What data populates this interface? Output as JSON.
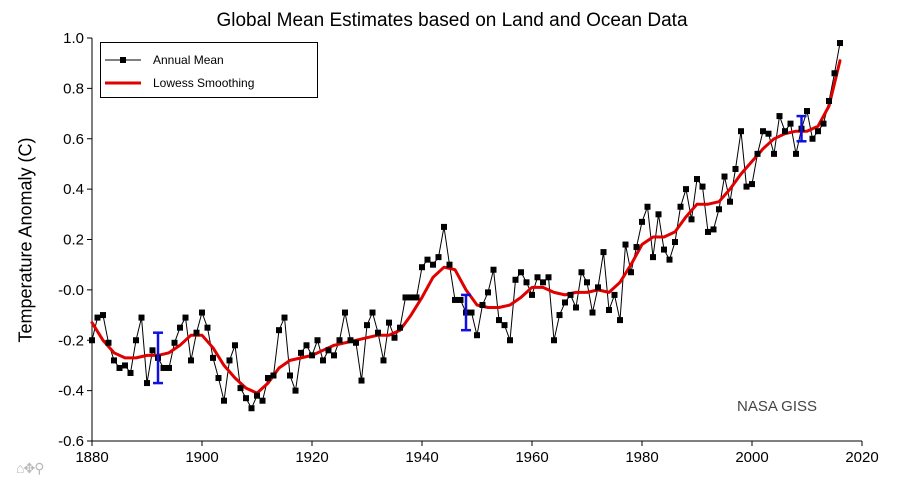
{
  "chart_data": {
    "type": "line",
    "title": "Global Mean Estimates based on Land and Ocean Data",
    "xlabel": "",
    "ylabel": "Temperature Anomaly (C)",
    "xlim": [
      1880,
      2020
    ],
    "ylim": [
      -0.6,
      1.0
    ],
    "x_ticks": [
      "1880",
      "1900",
      "1920",
      "1940",
      "1960",
      "1980",
      "2000",
      "2020"
    ],
    "y_ticks": [
      "1.0",
      "0.8",
      "0.6",
      "0.4",
      "0.2",
      "-0.0",
      "-0.2",
      "-0.4",
      "-0.6"
    ],
    "legend_position": "top-left",
    "grid": false,
    "series": [
      {
        "name": "Annual Mean",
        "color": "#000000",
        "marker": "square",
        "x": [
          1880,
          1881,
          1882,
          1883,
          1884,
          1885,
          1886,
          1887,
          1888,
          1889,
          1890,
          1891,
          1892,
          1893,
          1894,
          1895,
          1896,
          1897,
          1898,
          1899,
          1900,
          1901,
          1902,
          1903,
          1904,
          1905,
          1906,
          1907,
          1908,
          1909,
          1910,
          1911,
          1912,
          1913,
          1914,
          1915,
          1916,
          1917,
          1918,
          1919,
          1920,
          1921,
          1922,
          1923,
          1924,
          1925,
          1926,
          1927,
          1928,
          1929,
          1930,
          1931,
          1932,
          1933,
          1934,
          1935,
          1936,
          1937,
          1938,
          1939,
          1940,
          1941,
          1942,
          1943,
          1944,
          1945,
          1946,
          1947,
          1948,
          1949,
          1950,
          1951,
          1952,
          1953,
          1954,
          1955,
          1956,
          1957,
          1958,
          1959,
          1960,
          1961,
          1962,
          1963,
          1964,
          1965,
          1966,
          1967,
          1968,
          1969,
          1970,
          1971,
          1972,
          1973,
          1974,
          1975,
          1976,
          1977,
          1978,
          1979,
          1980,
          1981,
          1982,
          1983,
          1984,
          1985,
          1986,
          1987,
          1988,
          1989,
          1990,
          1991,
          1992,
          1993,
          1994,
          1995,
          1996,
          1997,
          1998,
          1999,
          2000,
          2001,
          2002,
          2003,
          2004,
          2005,
          2006,
          2007,
          2008,
          2009,
          2010,
          2011,
          2012,
          2013,
          2014,
          2015,
          2016
        ],
        "y": [
          -0.2,
          -0.11,
          -0.1,
          -0.21,
          -0.28,
          -0.31,
          -0.3,
          -0.33,
          -0.2,
          -0.11,
          -0.37,
          -0.24,
          -0.27,
          -0.31,
          -0.31,
          -0.21,
          -0.15,
          -0.11,
          -0.28,
          -0.17,
          -0.09,
          -0.15,
          -0.27,
          -0.35,
          -0.44,
          -0.28,
          -0.22,
          -0.39,
          -0.43,
          -0.47,
          -0.42,
          -0.44,
          -0.35,
          -0.34,
          -0.16,
          -0.11,
          -0.34,
          -0.4,
          -0.25,
          -0.22,
          -0.26,
          -0.2,
          -0.28,
          -0.24,
          -0.26,
          -0.2,
          -0.09,
          -0.2,
          -0.21,
          -0.36,
          -0.14,
          -0.09,
          -0.17,
          -0.28,
          -0.13,
          -0.19,
          -0.15,
          -0.03,
          -0.03,
          -0.03,
          0.09,
          0.12,
          0.1,
          0.13,
          0.25,
          0.1,
          -0.04,
          -0.04,
          -0.09,
          -0.09,
          -0.18,
          -0.06,
          -0.01,
          0.08,
          -0.12,
          -0.14,
          -0.2,
          0.04,
          0.07,
          0.03,
          -0.02,
          0.05,
          0.03,
          0.05,
          -0.2,
          -0.1,
          -0.05,
          -0.02,
          -0.07,
          0.07,
          0.03,
          -0.09,
          0.01,
          0.15,
          -0.08,
          -0.02,
          -0.12,
          0.18,
          0.07,
          0.17,
          0.27,
          0.33,
          0.13,
          0.3,
          0.16,
          0.12,
          0.19,
          0.33,
          0.4,
          0.28,
          0.44,
          0.41,
          0.23,
          0.24,
          0.32,
          0.45,
          0.35,
          0.48,
          0.63,
          0.41,
          0.42,
          0.54,
          0.63,
          0.62,
          0.54,
          0.69,
          0.63,
          0.66,
          0.54,
          0.64,
          0.71,
          0.6,
          0.63,
          0.66,
          0.75,
          0.86,
          0.98
        ]
      },
      {
        "name": "Lowess Smoothing",
        "color": "#e00000",
        "x": [
          1880,
          1882,
          1884,
          1886,
          1888,
          1890,
          1892,
          1894,
          1896,
          1898,
          1900,
          1902,
          1904,
          1906,
          1908,
          1910,
          1912,
          1914,
          1916,
          1918,
          1920,
          1922,
          1924,
          1926,
          1928,
          1930,
          1932,
          1934,
          1936,
          1938,
          1940,
          1942,
          1944,
          1946,
          1948,
          1950,
          1952,
          1954,
          1956,
          1958,
          1960,
          1962,
          1964,
          1966,
          1968,
          1970,
          1972,
          1974,
          1976,
          1978,
          1980,
          1982,
          1984,
          1986,
          1988,
          1990,
          1992,
          1994,
          1996,
          1998,
          2000,
          2002,
          2004,
          2006,
          2008,
          2010,
          2012,
          2014,
          2016
        ],
        "y": [
          -0.13,
          -0.2,
          -0.25,
          -0.27,
          -0.27,
          -0.26,
          -0.26,
          -0.25,
          -0.22,
          -0.18,
          -0.18,
          -0.23,
          -0.3,
          -0.35,
          -0.39,
          -0.41,
          -0.37,
          -0.31,
          -0.28,
          -0.27,
          -0.26,
          -0.24,
          -0.22,
          -0.21,
          -0.2,
          -0.19,
          -0.18,
          -0.18,
          -0.16,
          -0.1,
          -0.03,
          0.05,
          0.09,
          0.08,
          0.0,
          -0.06,
          -0.07,
          -0.07,
          -0.06,
          -0.03,
          0.01,
          0.01,
          -0.01,
          -0.02,
          -0.01,
          -0.01,
          0.0,
          -0.01,
          0.03,
          0.1,
          0.18,
          0.21,
          0.21,
          0.23,
          0.29,
          0.34,
          0.34,
          0.35,
          0.4,
          0.46,
          0.51,
          0.56,
          0.6,
          0.62,
          0.63,
          0.63,
          0.65,
          0.73,
          0.91
        ]
      }
    ],
    "error_bars": [
      {
        "x": 1892,
        "y": -0.27,
        "low": -0.37,
        "high": -0.17
      },
      {
        "x": 1948,
        "y": -0.09,
        "low": -0.16,
        "high": -0.02
      },
      {
        "x": 2009,
        "y": 0.64,
        "low": 0.59,
        "high": 0.69
      }
    ],
    "error_bar_color": "#1010e0",
    "annotation": "NASA GISS"
  },
  "toolbar": {
    "home_icon": "⌂",
    "pan_icon": "✥",
    "zoom_icon": "⚲"
  }
}
